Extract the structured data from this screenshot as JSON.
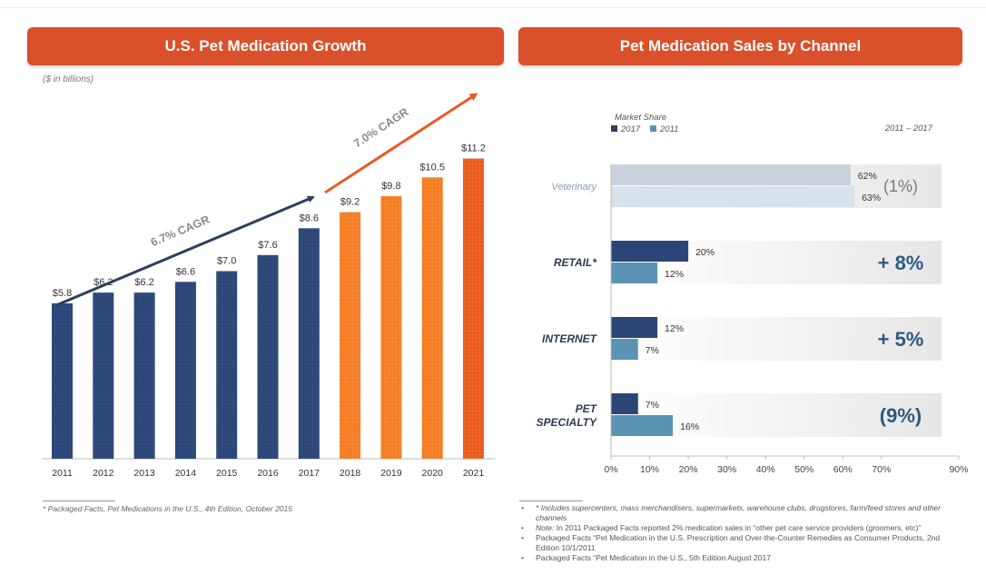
{
  "left_title": "U.S. Pet Medication Growth",
  "right_title": "Pet Medication Sales by Channel",
  "colors": {
    "banner": "#d9502a",
    "navy": "#2b4676",
    "orange": "#f47b20",
    "steel": "#5b93b4",
    "dark_navy": "#2d3f5f",
    "arrow_orange": "#e85b22",
    "muted": "#8a9fb5",
    "change_navy": "#2d5a80"
  },
  "chart_data": [
    {
      "type": "bar",
      "title": "U.S. Pet Medication Growth",
      "units": "($ in billions)",
      "categories": [
        "2011",
        "2012",
        "2013",
        "2014",
        "2015",
        "2016",
        "2017",
        "2018",
        "2019",
        "2020",
        "2021"
      ],
      "values": [
        5.8,
        6.2,
        6.2,
        6.6,
        7.0,
        7.6,
        8.6,
        9.2,
        9.8,
        10.5,
        11.2
      ],
      "labels": [
        "$5.8",
        "$6.2",
        "$6.2",
        "$6.6",
        "$7.0",
        "$7.6",
        "$8.6",
        "$9.2",
        "$9.8",
        "$10.5",
        "$11.2"
      ],
      "projected_from_index": 7,
      "annotations": [
        "6.7% CAGR",
        "7.0% CAGR"
      ]
    },
    {
      "type": "bar",
      "orientation": "horizontal",
      "title": "Pet Medication Sales by Channel",
      "legend_title": "Market Share",
      "period": "2011 – 2017",
      "xlim": [
        0,
        90
      ],
      "xticks": [
        "0%",
        "10%",
        "20%",
        "30%",
        "40%",
        "50%",
        "60%",
        "70%",
        "90%"
      ],
      "series": [
        {
          "name": "2017",
          "values": [
            62,
            20,
            12,
            7
          ]
        },
        {
          "name": "2011",
          "values": [
            63,
            12,
            7,
            16
          ]
        }
      ],
      "categories": [
        {
          "lines": [
            "Veterinary"
          ],
          "label_2017": "62%",
          "label_2011": "63%",
          "change": "(1%)",
          "style": "muted"
        },
        {
          "lines": [
            "RETAIL*"
          ],
          "label_2017": "20%",
          "label_2011": "12%",
          "change": "+ 8%",
          "style": "bold"
        },
        {
          "lines": [
            "INTERNET"
          ],
          "label_2017": "12%",
          "label_2011": "7%",
          "change": "+ 5%",
          "style": "bold"
        },
        {
          "lines": [
            "PET",
            "SPECIALTY"
          ],
          "label_2017": "7%",
          "label_2011": "16%",
          "change": "(9%)",
          "style": "bold"
        }
      ]
    }
  ],
  "footnote_left": "* Packaged Facts, Pet Medications in the U.S., 4th Edition, October 2015",
  "footnotes_right": [
    "* Includes supercenters, mass merchandisers, supermarkets, warehouse clubs, drugstores, farm/feed stores and other channels",
    "Note: In 2011 Packaged Facts reported 2% medication sales in “other pet care service providers (groomers, etc)”",
    "Packaged Facts “Pet Medication in the U.S. Prescription and Over-the-Counter Remedies as Consumer Products, 2nd Edition 10/1/2011",
    "Packaged Facts “Pet Medication in the U.S., 5th Edition August 2017"
  ]
}
